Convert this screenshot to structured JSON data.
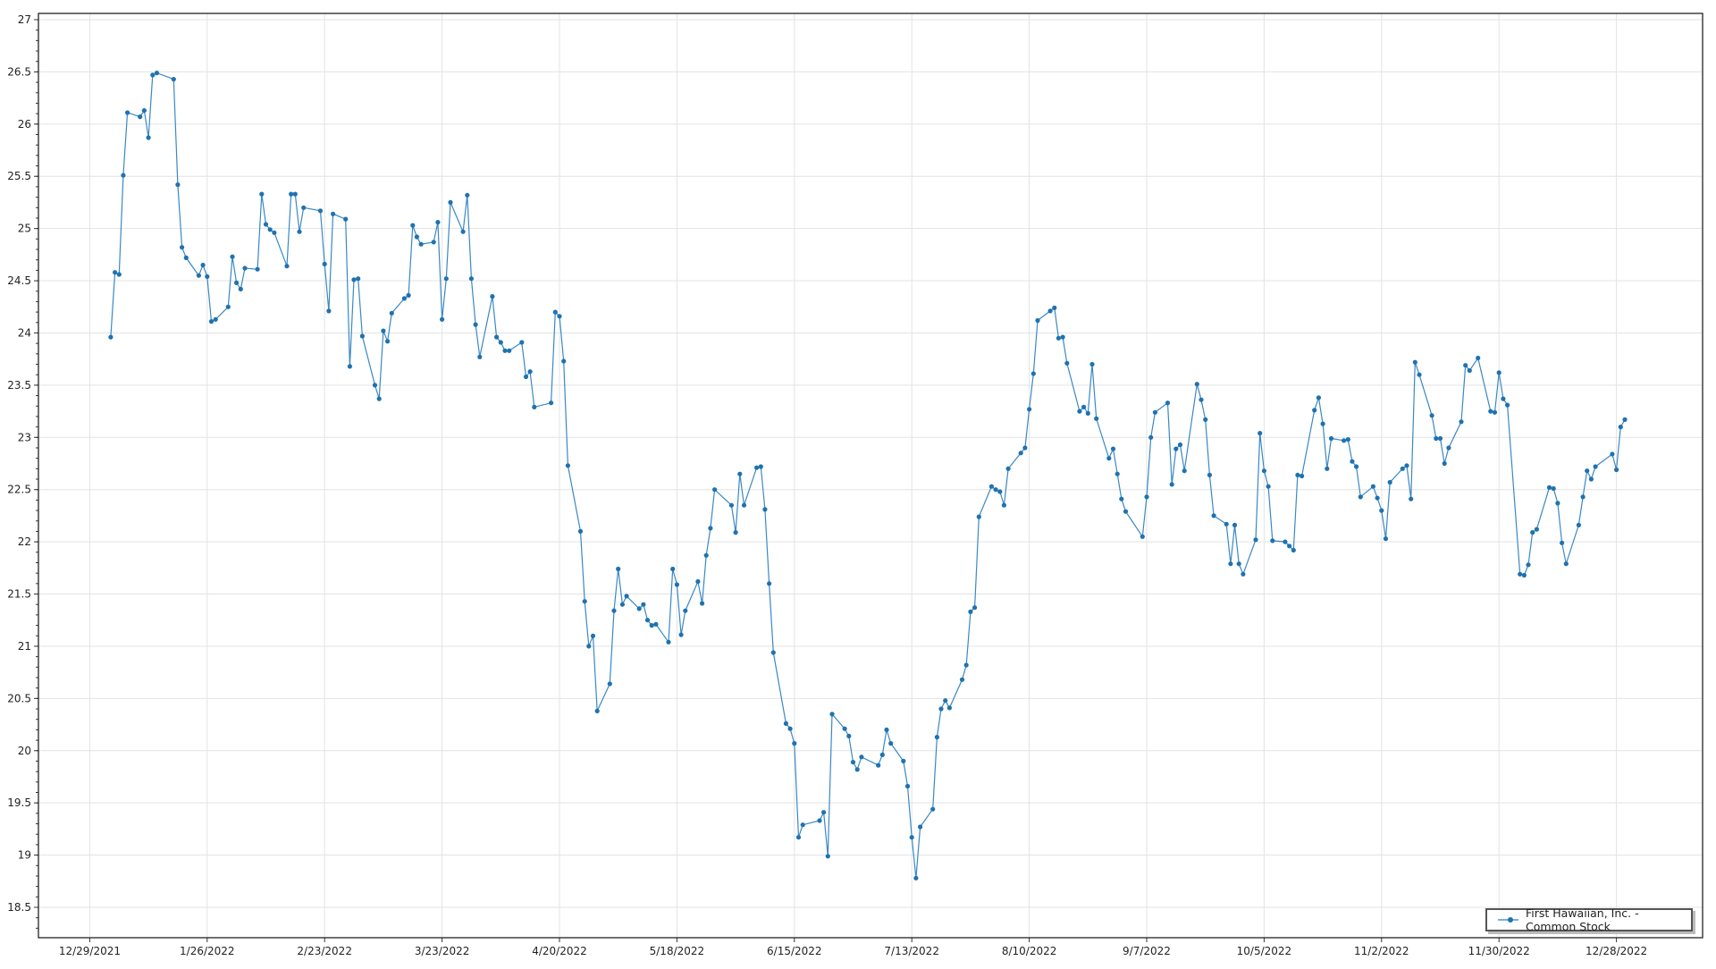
{
  "chart_data": {
    "type": "line",
    "title": "",
    "xlabel": "",
    "ylabel": "",
    "ylim": [
      18.5,
      27
    ],
    "yticks": [
      "18.5",
      "19",
      "19.5",
      "20",
      "20.5",
      "21",
      "21.5",
      "22",
      "22.5",
      "23",
      "23.5",
      "24",
      "24.5",
      "25",
      "25.5",
      "26",
      "26.5",
      "27"
    ],
    "xticks": [
      "12/29/2021",
      "1/26/2022",
      "2/23/2022",
      "3/23/2022",
      "4/20/2022",
      "5/18/2022",
      "6/15/2022",
      "7/13/2022",
      "8/10/2022",
      "9/7/2022",
      "10/5/2022",
      "11/2/2022",
      "11/30/2022",
      "12/28/2022"
    ],
    "grid": true,
    "legend_position": "bottom-right",
    "series": [
      {
        "name": "First Hawaiian, Inc. - Common Stock",
        "color": "#1f72b0",
        "points": [
          [
            "2022-01-03",
            23.96
          ],
          [
            "2022-01-04",
            24.58
          ],
          [
            "2022-01-05",
            24.56
          ],
          [
            "2022-01-06",
            25.51
          ],
          [
            "2022-01-07",
            26.11
          ],
          [
            "2022-01-10",
            26.07
          ],
          [
            "2022-01-11",
            26.13
          ],
          [
            "2022-01-12",
            25.87
          ],
          [
            "2022-01-13",
            26.47
          ],
          [
            "2022-01-14",
            26.49
          ],
          [
            "2022-01-18",
            26.43
          ],
          [
            "2022-01-19",
            25.42
          ],
          [
            "2022-01-20",
            24.82
          ],
          [
            "2022-01-21",
            24.72
          ],
          [
            "2022-01-24",
            24.55
          ],
          [
            "2022-01-25",
            24.65
          ],
          [
            "2022-01-26",
            24.54
          ],
          [
            "2022-01-27",
            24.11
          ],
          [
            "2022-01-28",
            24.13
          ],
          [
            "2022-01-31",
            24.25
          ],
          [
            "2022-02-01",
            24.73
          ],
          [
            "2022-02-02",
            24.48
          ],
          [
            "2022-02-03",
            24.42
          ],
          [
            "2022-02-04",
            24.62
          ],
          [
            "2022-02-07",
            24.61
          ],
          [
            "2022-02-08",
            25.33
          ],
          [
            "2022-02-09",
            25.04
          ],
          [
            "2022-02-10",
            24.99
          ],
          [
            "2022-02-11",
            24.96
          ],
          [
            "2022-02-14",
            24.64
          ],
          [
            "2022-02-15",
            25.33
          ],
          [
            "2022-02-16",
            25.33
          ],
          [
            "2022-02-17",
            24.97
          ],
          [
            "2022-02-18",
            25.2
          ],
          [
            "2022-02-22",
            25.17
          ],
          [
            "2022-02-23",
            24.66
          ],
          [
            "2022-02-24",
            24.21
          ],
          [
            "2022-02-25",
            25.14
          ],
          [
            "2022-02-28",
            25.09
          ],
          [
            "2022-03-01",
            23.68
          ],
          [
            "2022-03-02",
            24.51
          ],
          [
            "2022-03-03",
            24.52
          ],
          [
            "2022-03-04",
            23.97
          ],
          [
            "2022-03-07",
            23.5
          ],
          [
            "2022-03-08",
            23.37
          ],
          [
            "2022-03-09",
            24.02
          ],
          [
            "2022-03-10",
            23.92
          ],
          [
            "2022-03-11",
            24.19
          ],
          [
            "2022-03-14",
            24.33
          ],
          [
            "2022-03-15",
            24.36
          ],
          [
            "2022-03-16",
            25.03
          ],
          [
            "2022-03-17",
            24.92
          ],
          [
            "2022-03-18",
            24.85
          ],
          [
            "2022-03-21",
            24.87
          ],
          [
            "2022-03-22",
            25.06
          ],
          [
            "2022-03-23",
            24.13
          ],
          [
            "2022-03-24",
            24.52
          ],
          [
            "2022-03-25",
            25.25
          ],
          [
            "2022-03-28",
            24.97
          ],
          [
            "2022-03-29",
            25.32
          ],
          [
            "2022-03-30",
            24.52
          ],
          [
            "2022-03-31",
            24.08
          ],
          [
            "2022-04-01",
            23.77
          ],
          [
            "2022-04-04",
            24.35
          ],
          [
            "2022-04-05",
            23.96
          ],
          [
            "2022-04-06",
            23.91
          ],
          [
            "2022-04-07",
            23.83
          ],
          [
            "2022-04-08",
            23.83
          ],
          [
            "2022-04-11",
            23.91
          ],
          [
            "2022-04-12",
            23.58
          ],
          [
            "2022-04-13",
            23.63
          ],
          [
            "2022-04-14",
            23.29
          ],
          [
            "2022-04-18",
            23.33
          ],
          [
            "2022-04-19",
            24.2
          ],
          [
            "2022-04-20",
            24.16
          ],
          [
            "2022-04-21",
            23.73
          ],
          [
            "2022-04-22",
            22.73
          ],
          [
            "2022-04-25",
            22.1
          ],
          [
            "2022-04-26",
            21.43
          ],
          [
            "2022-04-27",
            21.0
          ],
          [
            "2022-04-28",
            21.1
          ],
          [
            "2022-04-29",
            20.38
          ],
          [
            "2022-05-02",
            20.64
          ],
          [
            "2022-05-03",
            21.34
          ],
          [
            "2022-05-04",
            21.74
          ],
          [
            "2022-05-05",
            21.4
          ],
          [
            "2022-05-06",
            21.48
          ],
          [
            "2022-05-09",
            21.36
          ],
          [
            "2022-05-10",
            21.4
          ],
          [
            "2022-05-11",
            21.25
          ],
          [
            "2022-05-12",
            21.2
          ],
          [
            "2022-05-13",
            21.21
          ],
          [
            "2022-05-16",
            21.04
          ],
          [
            "2022-05-17",
            21.74
          ],
          [
            "2022-05-18",
            21.59
          ],
          [
            "2022-05-19",
            21.11
          ],
          [
            "2022-05-20",
            21.34
          ],
          [
            "2022-05-23",
            21.62
          ],
          [
            "2022-05-24",
            21.41
          ],
          [
            "2022-05-25",
            21.87
          ],
          [
            "2022-05-26",
            22.13
          ],
          [
            "2022-05-27",
            22.5
          ],
          [
            "2022-05-31",
            22.35
          ],
          [
            "2022-06-01",
            22.09
          ],
          [
            "2022-06-02",
            22.65
          ],
          [
            "2022-06-03",
            22.35
          ],
          [
            "2022-06-06",
            22.71
          ],
          [
            "2022-06-07",
            22.72
          ],
          [
            "2022-06-08",
            22.31
          ],
          [
            "2022-06-09",
            21.6
          ],
          [
            "2022-06-10",
            20.94
          ],
          [
            "2022-06-13",
            20.26
          ],
          [
            "2022-06-14",
            20.21
          ],
          [
            "2022-06-15",
            20.07
          ],
          [
            "2022-06-16",
            19.17
          ],
          [
            "2022-06-17",
            19.29
          ],
          [
            "2022-06-21",
            19.33
          ],
          [
            "2022-06-22",
            19.41
          ],
          [
            "2022-06-23",
            18.99
          ],
          [
            "2022-06-24",
            20.35
          ],
          [
            "2022-06-27",
            20.21
          ],
          [
            "2022-06-28",
            20.14
          ],
          [
            "2022-06-29",
            19.89
          ],
          [
            "2022-06-30",
            19.82
          ],
          [
            "2022-07-01",
            19.94
          ],
          [
            "2022-07-05",
            19.86
          ],
          [
            "2022-07-06",
            19.96
          ],
          [
            "2022-07-07",
            20.2
          ],
          [
            "2022-07-08",
            20.07
          ],
          [
            "2022-07-11",
            19.9
          ],
          [
            "2022-07-12",
            19.66
          ],
          [
            "2022-07-13",
            19.17
          ],
          [
            "2022-07-14",
            18.78
          ],
          [
            "2022-07-15",
            19.27
          ],
          [
            "2022-07-18",
            19.44
          ],
          [
            "2022-07-19",
            20.13
          ],
          [
            "2022-07-20",
            20.4
          ],
          [
            "2022-07-21",
            20.48
          ],
          [
            "2022-07-22",
            20.41
          ],
          [
            "2022-07-25",
            20.68
          ],
          [
            "2022-07-26",
            20.82
          ],
          [
            "2022-07-27",
            21.33
          ],
          [
            "2022-07-28",
            21.37
          ],
          [
            "2022-07-29",
            22.24
          ],
          [
            "2022-08-01",
            22.53
          ],
          [
            "2022-08-02",
            22.5
          ],
          [
            "2022-08-03",
            22.48
          ],
          [
            "2022-08-04",
            22.35
          ],
          [
            "2022-08-05",
            22.7
          ],
          [
            "2022-08-08",
            22.85
          ],
          [
            "2022-08-09",
            22.9
          ],
          [
            "2022-08-10",
            23.27
          ],
          [
            "2022-08-11",
            23.61
          ],
          [
            "2022-08-12",
            24.12
          ],
          [
            "2022-08-15",
            24.21
          ],
          [
            "2022-08-16",
            24.24
          ],
          [
            "2022-08-17",
            23.95
          ],
          [
            "2022-08-18",
            23.96
          ],
          [
            "2022-08-19",
            23.71
          ],
          [
            "2022-08-22",
            23.25
          ],
          [
            "2022-08-23",
            23.29
          ],
          [
            "2022-08-24",
            23.23
          ],
          [
            "2022-08-25",
            23.7
          ],
          [
            "2022-08-26",
            23.18
          ],
          [
            "2022-08-29",
            22.8
          ],
          [
            "2022-08-30",
            22.89
          ],
          [
            "2022-08-31",
            22.65
          ],
          [
            "2022-09-01",
            22.41
          ],
          [
            "2022-09-02",
            22.29
          ],
          [
            "2022-09-06",
            22.05
          ],
          [
            "2022-09-07",
            22.43
          ],
          [
            "2022-09-08",
            23.0
          ],
          [
            "2022-09-09",
            23.24
          ],
          [
            "2022-09-12",
            23.33
          ],
          [
            "2022-09-13",
            22.55
          ],
          [
            "2022-09-14",
            22.89
          ],
          [
            "2022-09-15",
            22.93
          ],
          [
            "2022-09-16",
            22.68
          ],
          [
            "2022-09-19",
            23.51
          ],
          [
            "2022-09-20",
            23.36
          ],
          [
            "2022-09-21",
            23.17
          ],
          [
            "2022-09-22",
            22.64
          ],
          [
            "2022-09-23",
            22.25
          ],
          [
            "2022-09-26",
            22.17
          ],
          [
            "2022-09-27",
            21.79
          ],
          [
            "2022-09-28",
            22.16
          ],
          [
            "2022-09-29",
            21.79
          ],
          [
            "2022-09-30",
            21.69
          ],
          [
            "2022-10-03",
            22.02
          ],
          [
            "2022-10-04",
            23.04
          ],
          [
            "2022-10-05",
            22.68
          ],
          [
            "2022-10-06",
            22.53
          ],
          [
            "2022-10-07",
            22.01
          ],
          [
            "2022-10-10",
            22.0
          ],
          [
            "2022-10-11",
            21.96
          ],
          [
            "2022-10-12",
            21.92
          ],
          [
            "2022-10-13",
            22.64
          ],
          [
            "2022-10-14",
            22.63
          ],
          [
            "2022-10-17",
            23.26
          ],
          [
            "2022-10-18",
            23.38
          ],
          [
            "2022-10-19",
            23.13
          ],
          [
            "2022-10-20",
            22.7
          ],
          [
            "2022-10-21",
            22.99
          ],
          [
            "2022-10-24",
            22.97
          ],
          [
            "2022-10-25",
            22.98
          ],
          [
            "2022-10-26",
            22.77
          ],
          [
            "2022-10-27",
            22.72
          ],
          [
            "2022-10-28",
            22.43
          ],
          [
            "2022-10-31",
            22.53
          ],
          [
            "2022-11-01",
            22.42
          ],
          [
            "2022-11-02",
            22.3
          ],
          [
            "2022-11-03",
            22.03
          ],
          [
            "2022-11-04",
            22.57
          ],
          [
            "2022-11-07",
            22.7
          ],
          [
            "2022-11-08",
            22.73
          ],
          [
            "2022-11-09",
            22.41
          ],
          [
            "2022-11-10",
            23.72
          ],
          [
            "2022-11-11",
            23.6
          ],
          [
            "2022-11-14",
            23.21
          ],
          [
            "2022-11-15",
            22.99
          ],
          [
            "2022-11-16",
            22.99
          ],
          [
            "2022-11-17",
            22.75
          ],
          [
            "2022-11-18",
            22.9
          ],
          [
            "2022-11-21",
            23.15
          ],
          [
            "2022-11-22",
            23.69
          ],
          [
            "2022-11-23",
            23.64
          ],
          [
            "2022-11-25",
            23.76
          ],
          [
            "2022-11-28",
            23.25
          ],
          [
            "2022-11-29",
            23.24
          ],
          [
            "2022-11-30",
            23.62
          ],
          [
            "2022-12-01",
            23.37
          ],
          [
            "2022-12-02",
            23.31
          ],
          [
            "2022-12-05",
            21.69
          ],
          [
            "2022-12-06",
            21.68
          ],
          [
            "2022-12-07",
            21.78
          ],
          [
            "2022-12-08",
            22.09
          ],
          [
            "2022-12-09",
            22.12
          ],
          [
            "2022-12-12",
            22.52
          ],
          [
            "2022-12-13",
            22.51
          ],
          [
            "2022-12-14",
            22.37
          ],
          [
            "2022-12-15",
            21.99
          ],
          [
            "2022-12-16",
            21.79
          ],
          [
            "2022-12-19",
            22.16
          ],
          [
            "2022-12-20",
            22.43
          ],
          [
            "2022-12-21",
            22.68
          ],
          [
            "2022-12-22",
            22.6
          ],
          [
            "2022-12-23",
            22.72
          ],
          [
            "2022-12-27",
            22.84
          ],
          [
            "2022-12-28",
            22.69
          ],
          [
            "2022-12-29",
            23.1
          ],
          [
            "2022-12-30",
            23.17
          ]
        ]
      }
    ]
  }
}
